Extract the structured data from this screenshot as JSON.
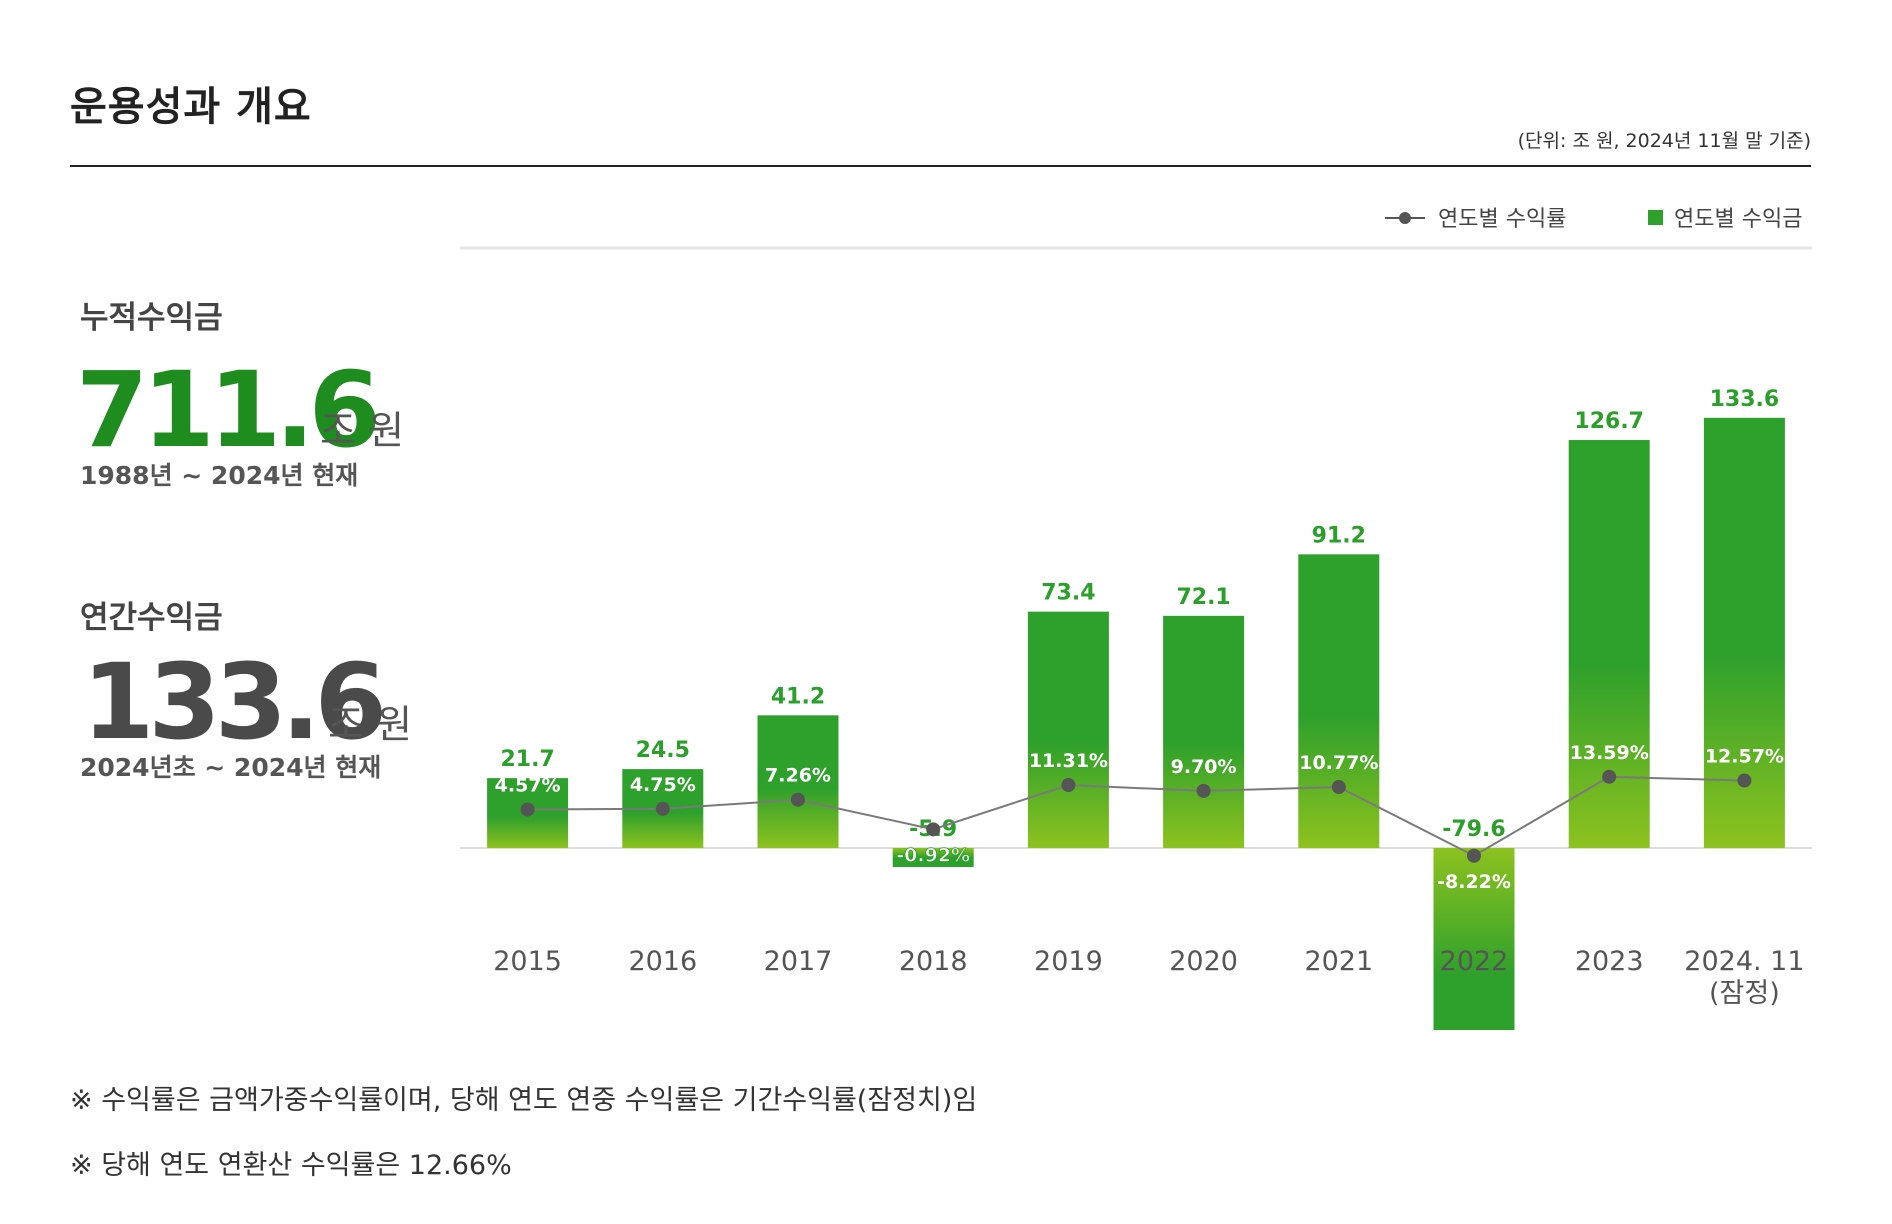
{
  "header": {
    "title": "운용성과 개요",
    "unit_note": "(단위: 조 원, 2024년 11월 말 기준)"
  },
  "kpis": {
    "cumulative": {
      "label": "누적수익금",
      "value": "711.6",
      "unit": "조 원",
      "period": "1988년 ~ 2024년 현재"
    },
    "annual": {
      "label": "연간수익금",
      "value": "133.6",
      "unit": "조 원",
      "period": "2024년초 ~ 2024년 현재"
    }
  },
  "colors": {
    "bar_top": "#2ea02c",
    "bar_bottom": "#8dc21f",
    "line": "#7a7a7a",
    "marker": "#555555",
    "value_label": "#2aa02a",
    "cumulative_value": "#1e8c1e"
  },
  "chart_data": {
    "type": "bar",
    "categories": [
      "2015",
      "2016",
      "2017",
      "2018",
      "2019",
      "2020",
      "2021",
      "2022",
      "2023",
      "2024. 11\n(잠정)"
    ],
    "series": [
      {
        "name": "연도별 수익금",
        "type": "bar",
        "values": [
          21.7,
          24.5,
          41.2,
          -5.9,
          73.4,
          72.1,
          91.2,
          -79.6,
          126.7,
          133.6
        ],
        "labels": [
          "21.7",
          "24.5",
          "41.2",
          "-5.9",
          "73.4",
          "72.1",
          "91.2",
          "-79.6",
          "126.7",
          "133.6"
        ]
      },
      {
        "name": "연도별 수익률",
        "type": "line",
        "values": [
          4.57,
          4.75,
          7.26,
          -0.92,
          11.31,
          9.7,
          10.77,
          -8.22,
          13.59,
          12.57
        ],
        "labels": [
          "4.57%",
          "4.75%",
          "7.26%",
          "-0.92%",
          "11.31%",
          "9.70%",
          "10.77%",
          "-8.22%",
          "13.59%",
          "12.57%"
        ]
      }
    ],
    "legend": [
      "연도별 수익률",
      "연도별 수익금"
    ],
    "legend_position": "top-right",
    "ylim_bar": [
      -80,
      140
    ],
    "grid": false
  },
  "notes": [
    "※ 수익률은 금액가중수익률이며, 당해 연도 연중 수익률은 기간수익률(잠정치)임",
    "※ 당해 연도 연환산 수익률은 12.66%"
  ]
}
